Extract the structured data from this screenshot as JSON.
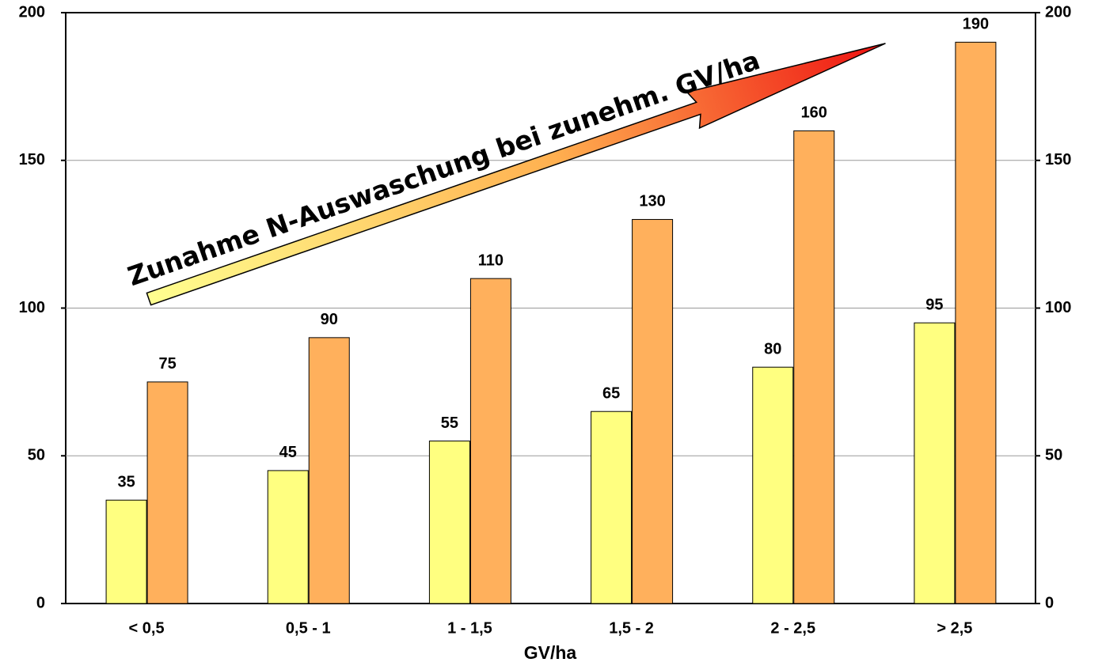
{
  "chart_data": {
    "type": "bar",
    "annotation": "Zunahme N-Auswaschung bei zunehm. GV/ha",
    "x_label": "GV/ha",
    "categories": [
      "< 0,5",
      "0,5 - 1",
      "1 - 1,5",
      "1,5 - 2",
      "2 - 2,5",
      "> 2,5"
    ],
    "series": [
      {
        "color": "#ffff80",
        "values": [
          35,
          45,
          55,
          65,
          80,
          95
        ]
      },
      {
        "color": "#ffb05c",
        "values": [
          75,
          90,
          110,
          130,
          160,
          190
        ]
      }
    ],
    "ylim": [
      0,
      200
    ],
    "yticks": [
      0,
      50,
      100,
      150,
      200
    ],
    "y2lim": [
      0,
      200
    ],
    "y2ticks": [
      0,
      50,
      100,
      150,
      200
    ],
    "grid": true
  }
}
